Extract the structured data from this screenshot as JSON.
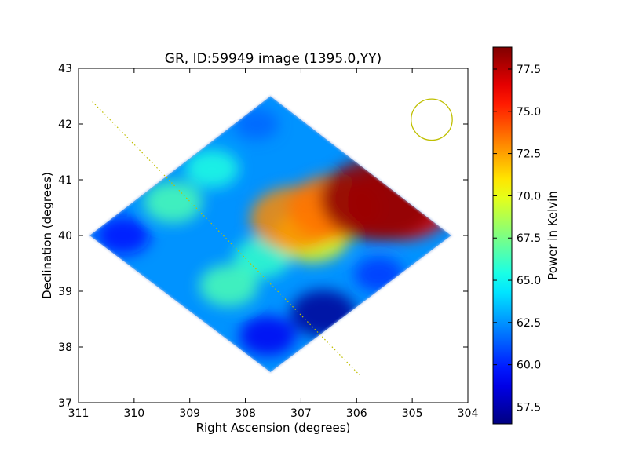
{
  "chart_data": {
    "type": "heatmap",
    "title": "GR, ID:59949 image (1395.0,YY)",
    "xlabel": "Right Ascension (degrees)",
    "ylabel": "Declination (degrees)",
    "xlim": [
      311,
      304
    ],
    "ylim": [
      37,
      43
    ],
    "x_ticks": [
      "311",
      "310",
      "309",
      "308",
      "307",
      "306",
      "305",
      "304"
    ],
    "y_ticks": [
      "37",
      "38",
      "39",
      "40",
      "41",
      "42",
      "43"
    ],
    "colorbar": {
      "label": "Power in Kelvin",
      "range": [
        56.5,
        78.8
      ],
      "ticks": [
        "57.5",
        "60.0",
        "62.5",
        "65.0",
        "67.5",
        "70.0",
        "72.5",
        "75.0",
        "77.5"
      ],
      "colormap": "jet"
    },
    "footprint": {
      "shape": "diamond",
      "ra": [
        310.8,
        307.55,
        304.3,
        307.55
      ],
      "dec": [
        40.0,
        42.5,
        40.0,
        37.55
      ]
    },
    "hotspots": [
      {
        "ra": 305.6,
        "dec": 40.65,
        "value": 78.5
      },
      {
        "ra": 305.2,
        "dec": 40.6,
        "value": 76.5
      },
      {
        "ra": 306.4,
        "dec": 40.5,
        "value": 73.5
      },
      {
        "ra": 307.1,
        "dec": 40.3,
        "value": 73.0
      },
      {
        "ra": 306.8,
        "dec": 40.0,
        "value": 70.0
      },
      {
        "ra": 309.3,
        "dec": 40.6,
        "value": 66.5
      },
      {
        "ra": 308.6,
        "dec": 41.2,
        "value": 65.5
      },
      {
        "ra": 308.3,
        "dec": 39.1,
        "value": 66.5
      },
      {
        "ra": 307.7,
        "dec": 39.6,
        "value": 66.0
      },
      {
        "ra": 306.6,
        "dec": 38.6,
        "value": 57.0
      },
      {
        "ra": 307.6,
        "dec": 38.2,
        "value": 59.0
      },
      {
        "ra": 310.2,
        "dec": 40.0,
        "value": 59.5
      },
      {
        "ra": 307.8,
        "dec": 42.0,
        "value": 61.5
      },
      {
        "ra": 305.6,
        "dec": 39.3,
        "value": 60.5
      }
    ],
    "base_value": 62.5,
    "scan_line": {
      "ra": [
        310.75,
        305.95
      ],
      "dec": [
        42.4,
        37.5
      ],
      "style": "dotted",
      "color": "#bfbf00"
    },
    "beam_circle": {
      "ra": 304.65,
      "dec": 42.08,
      "radius_deg": 0.37,
      "color": "#bfbf00"
    }
  }
}
